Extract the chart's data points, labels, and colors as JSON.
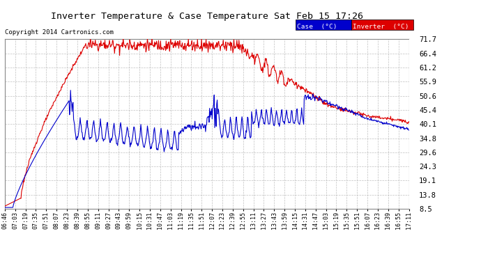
{
  "title": "Inverter Temperature & Case Temperature Sat Feb 15 17:26",
  "copyright": "Copyright 2014 Cartronics.com",
  "background_color": "#ffffff",
  "plot_bg_color": "#ffffff",
  "grid_color": "#b0b0b0",
  "case_color": "#0000cc",
  "inverter_color": "#dd0000",
  "ylim": [
    8.5,
    71.7
  ],
  "yticks": [
    8.5,
    13.8,
    19.1,
    24.3,
    29.6,
    34.8,
    40.1,
    45.4,
    50.6,
    55.9,
    61.2,
    66.4,
    71.7
  ],
  "legend_case_bg": "#0000cc",
  "legend_inverter_bg": "#dd0000",
  "legend_text_color": "#ffffff",
  "xtick_labels": [
    "06:46",
    "07:03",
    "07:19",
    "07:35",
    "07:51",
    "08:07",
    "08:23",
    "08:39",
    "08:55",
    "09:11",
    "09:27",
    "09:43",
    "09:59",
    "10:15",
    "10:31",
    "10:47",
    "11:03",
    "11:19",
    "11:35",
    "11:51",
    "12:07",
    "12:23",
    "12:39",
    "12:55",
    "13:11",
    "13:27",
    "13:43",
    "13:59",
    "14:15",
    "14:31",
    "14:47",
    "15:03",
    "15:19",
    "15:35",
    "15:51",
    "16:07",
    "16:23",
    "16:39",
    "16:55",
    "17:11"
  ]
}
